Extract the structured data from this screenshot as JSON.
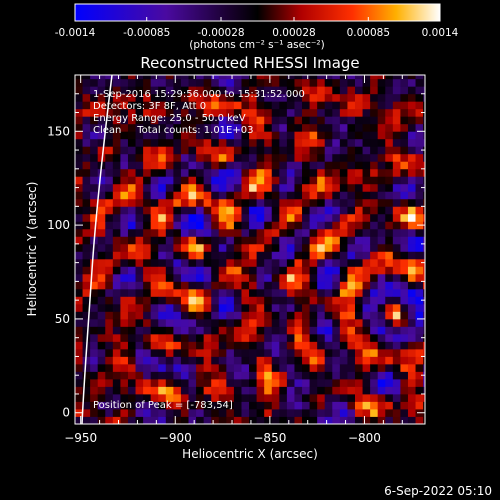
{
  "chart_data": {
    "type": "heatmap",
    "title": "Reconstructed RHESSI Image",
    "colorbar": {
      "min": -0.0014,
      "max": 0.0014,
      "tick_labels": [
        "-0.0014",
        "-0.00085",
        "-0.00028",
        "0.00028",
        "0.00085",
        "0.0014"
      ],
      "unit_label": "(photons cm⁻² s⁻¹ asec⁻²)"
    },
    "xlabel": "Heliocentric X (arcsec)",
    "ylabel": "Heliocentric Y (arcsec)",
    "xlim": [
      -953,
      -768
    ],
    "ylim": [
      -6,
      180
    ],
    "x_ticks": [
      {
        "value": -950,
        "label": "−950"
      },
      {
        "value": -900,
        "label": "−900"
      },
      {
        "value": -850,
        "label": "−850"
      },
      {
        "value": -800,
        "label": "−800"
      }
    ],
    "y_ticks": [
      {
        "value": 0,
        "label": "0"
      },
      {
        "value": 50,
        "label": "50"
      },
      {
        "value": 100,
        "label": "100"
      },
      {
        "value": 150,
        "label": "150"
      }
    ],
    "annotations": [
      "1-Sep-2016 15:29:56.000 to 15:31:52.000",
      "Detectors: 3F 8F, Att 0",
      "Energy Range: 25.0 - 50.0 keV",
      "Clean     Total counts: 1.01E+03"
    ],
    "peak_label": "Position of Peak = [-783,54]",
    "peak": {
      "x": -783,
      "y": 54
    },
    "grid": false,
    "colormap": "rhessi-blue-black-red-yellow-white",
    "pixel_size_arcsec": 4
  },
  "footer": {
    "date": "6-Sep-2022 05:10"
  }
}
